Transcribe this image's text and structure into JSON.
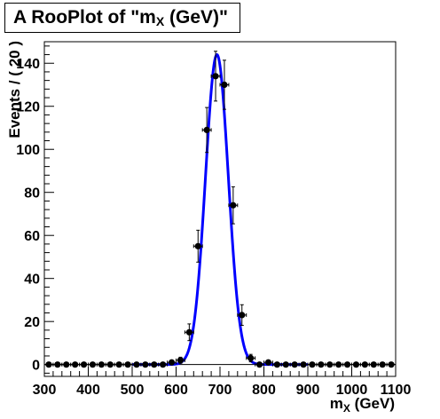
{
  "chart_data": {
    "type": "scatter",
    "title": {
      "prefix": "A RooPlot of \"m",
      "subscript": "X",
      "suffix": " (GeV)\""
    },
    "xlabel": {
      "main": "m",
      "subscript": "X",
      "suffix": " (GeV)"
    },
    "ylabel": "Events / ( 20 )",
    "xlim": [
      300,
      1100
    ],
    "ylim": [
      -5.5,
      150
    ],
    "xticks": [
      300,
      400,
      500,
      600,
      700,
      800,
      900,
      1000,
      1100
    ],
    "yticks": [
      0,
      20,
      40,
      60,
      80,
      100,
      120,
      140
    ],
    "grid": false,
    "legend": "none",
    "colors": {
      "fit_curve": "#0000ff",
      "points": "#000000"
    },
    "series": [
      {
        "kind": "points",
        "x": [
          310,
          330,
          350,
          370,
          390,
          410,
          430,
          450,
          470,
          490,
          510,
          530,
          550,
          570,
          590,
          610,
          630,
          650,
          670,
          690,
          710,
          730,
          750,
          770,
          790,
          810,
          830,
          850,
          870,
          890,
          910,
          930,
          950,
          970,
          990,
          1010,
          1030,
          1050,
          1070,
          1090
        ],
        "y": [
          0,
          0,
          0,
          0,
          0,
          0,
          0,
          0,
          0,
          0,
          0,
          0,
          0,
          0,
          1,
          2,
          15,
          55,
          109,
          134,
          130,
          74,
          23,
          3,
          0,
          1,
          0,
          0,
          0,
          0,
          0,
          0,
          0,
          0,
          0,
          0,
          0,
          0,
          0,
          0
        ],
        "xerr": 10
      },
      {
        "kind": "curve",
        "model": "gaussian",
        "amplitude": 144,
        "mean": 693,
        "sigma": 26
      }
    ]
  }
}
